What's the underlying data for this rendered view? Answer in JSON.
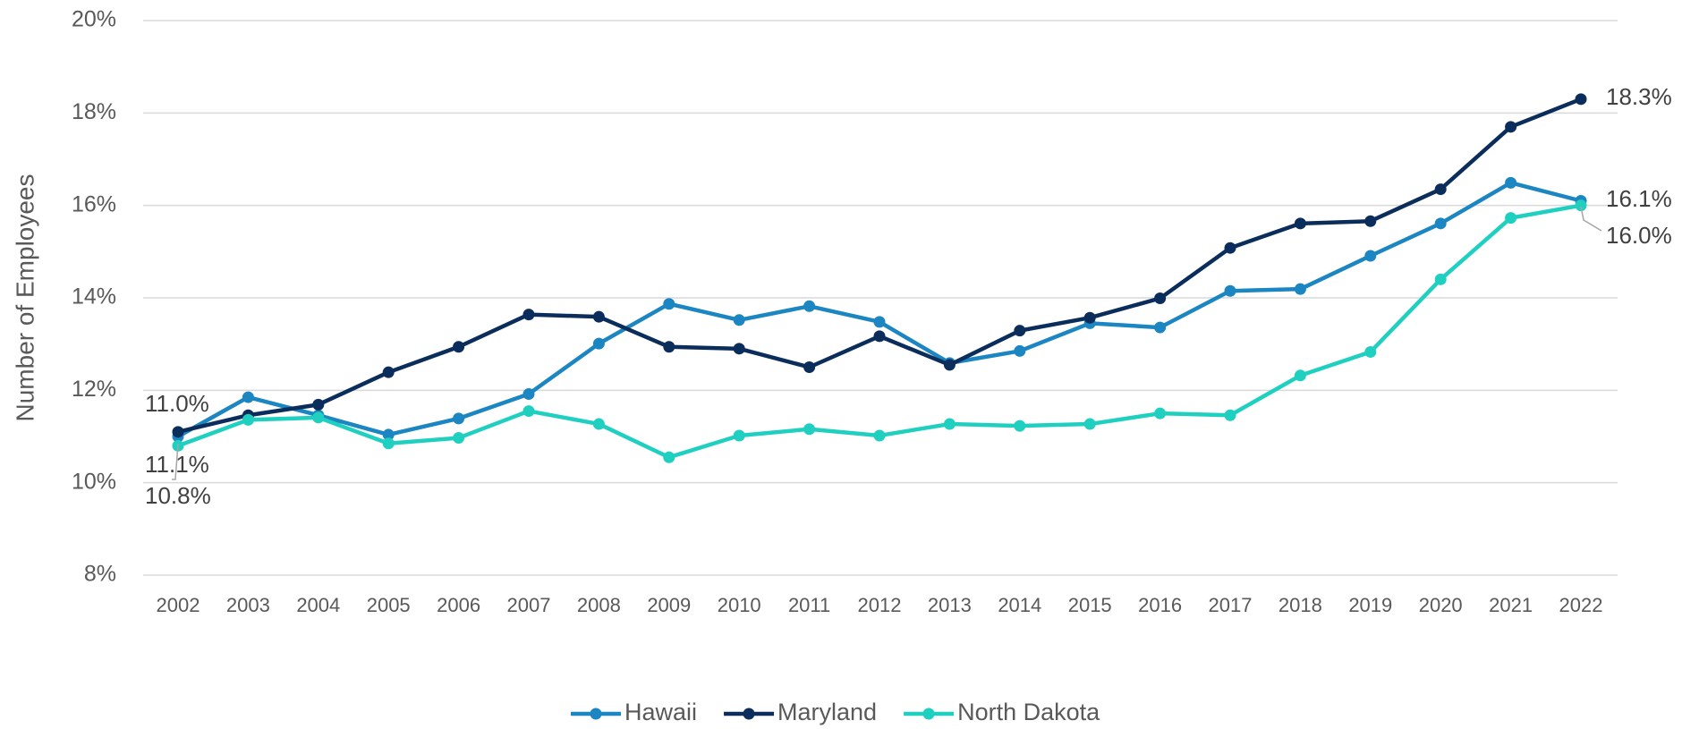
{
  "chart_data": {
    "type": "line",
    "y_label": "Number of Employees",
    "categories": [
      "2002",
      "2003",
      "2004",
      "2005",
      "2006",
      "2007",
      "2008",
      "2009",
      "2010",
      "2011",
      "2012",
      "2013",
      "2014",
      "2015",
      "2016",
      "2017",
      "2018",
      "2019",
      "2020",
      "2021",
      "2022"
    ],
    "series": [
      {
        "name": "Hawaii",
        "color": "#1b86c1",
        "values": [
          11.0,
          11.85,
          11.46,
          11.04,
          11.39,
          11.92,
          13.01,
          13.87,
          13.52,
          13.82,
          13.48,
          12.59,
          12.85,
          13.45,
          13.36,
          14.15,
          14.19,
          14.91,
          15.61,
          16.49,
          16.1
        ],
        "value_labels": [
          "11.0%",
          null,
          null,
          null,
          null,
          null,
          null,
          null,
          null,
          null,
          null,
          null,
          null,
          null,
          null,
          null,
          null,
          null,
          null,
          null,
          "16.1%"
        ]
      },
      {
        "name": "Maryland",
        "color": "#0b2d5b",
        "values": [
          11.1,
          11.46,
          11.69,
          12.39,
          12.94,
          13.64,
          13.59,
          12.94,
          12.9,
          12.5,
          13.17,
          12.55,
          13.29,
          13.57,
          13.99,
          15.08,
          15.61,
          15.66,
          16.35,
          17.7,
          18.3
        ],
        "value_labels": [
          "11.1%",
          null,
          null,
          null,
          null,
          null,
          null,
          null,
          null,
          null,
          null,
          null,
          null,
          null,
          null,
          null,
          null,
          null,
          null,
          null,
          "18.3%"
        ]
      },
      {
        "name": "North Dakota",
        "color": "#1fd0c0",
        "values": [
          10.8,
          11.36,
          11.41,
          10.85,
          10.97,
          11.55,
          11.27,
          10.55,
          11.02,
          11.16,
          11.02,
          11.27,
          11.23,
          11.27,
          11.5,
          11.46,
          12.32,
          12.83,
          14.4,
          15.73,
          16.0
        ],
        "value_labels": [
          "10.8%",
          null,
          null,
          null,
          null,
          null,
          null,
          null,
          null,
          null,
          null,
          null,
          null,
          null,
          null,
          null,
          null,
          null,
          null,
          null,
          "16.0%"
        ]
      }
    ],
    "ylim": [
      8,
      20
    ],
    "yticks": [
      {
        "value": 8,
        "label": "8%"
      },
      {
        "value": 10,
        "label": "10%"
      },
      {
        "value": 12,
        "label": "12%"
      },
      {
        "value": 14,
        "label": "14%"
      },
      {
        "value": 16,
        "label": "16%"
      },
      {
        "value": 18,
        "label": "18%"
      },
      {
        "value": 20,
        "label": "20%"
      }
    ],
    "grid": true,
    "legend": "bottom"
  }
}
